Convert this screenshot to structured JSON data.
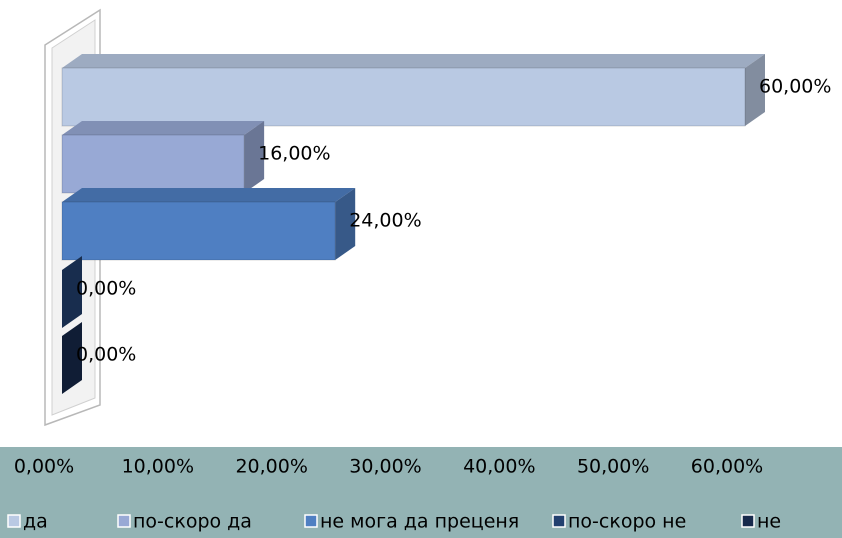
{
  "chart_data": {
    "type": "bar",
    "orientation": "horizontal",
    "series": [
      {
        "name": "да",
        "color": "#b9c9e3",
        "values": [
          60
        ],
        "value_labels": [
          "60,00%"
        ]
      },
      {
        "name": "по-скоро да",
        "color": "#98a9d5",
        "values": [
          16
        ],
        "value_labels": [
          "16,00%"
        ]
      },
      {
        "name": "не мога да преценя",
        "color": "#4f7fc2",
        "values": [
          24
        ],
        "value_labels": [
          "24,00%"
        ]
      },
      {
        "name": "по-скоро не",
        "color": "#22406f",
        "values": [
          0
        ],
        "value_labels": [
          "0,00%"
        ]
      },
      {
        "name": "не",
        "color": "#172a4c",
        "values": [
          0
        ],
        "value_labels": [
          "0,00%"
        ]
      }
    ],
    "xlim": [
      0,
      60
    ],
    "xticks": [
      {
        "value": 0,
        "label": "0,00%"
      },
      {
        "value": 10,
        "label": "10,00%"
      },
      {
        "value": 20,
        "label": "20,00%"
      },
      {
        "value": 30,
        "label": "30,00%"
      },
      {
        "value": 40,
        "label": "40,00%"
      },
      {
        "value": 50,
        "label": "50,00%"
      },
      {
        "value": 60,
        "label": "60,00%"
      }
    ],
    "legend": "bottom"
  }
}
